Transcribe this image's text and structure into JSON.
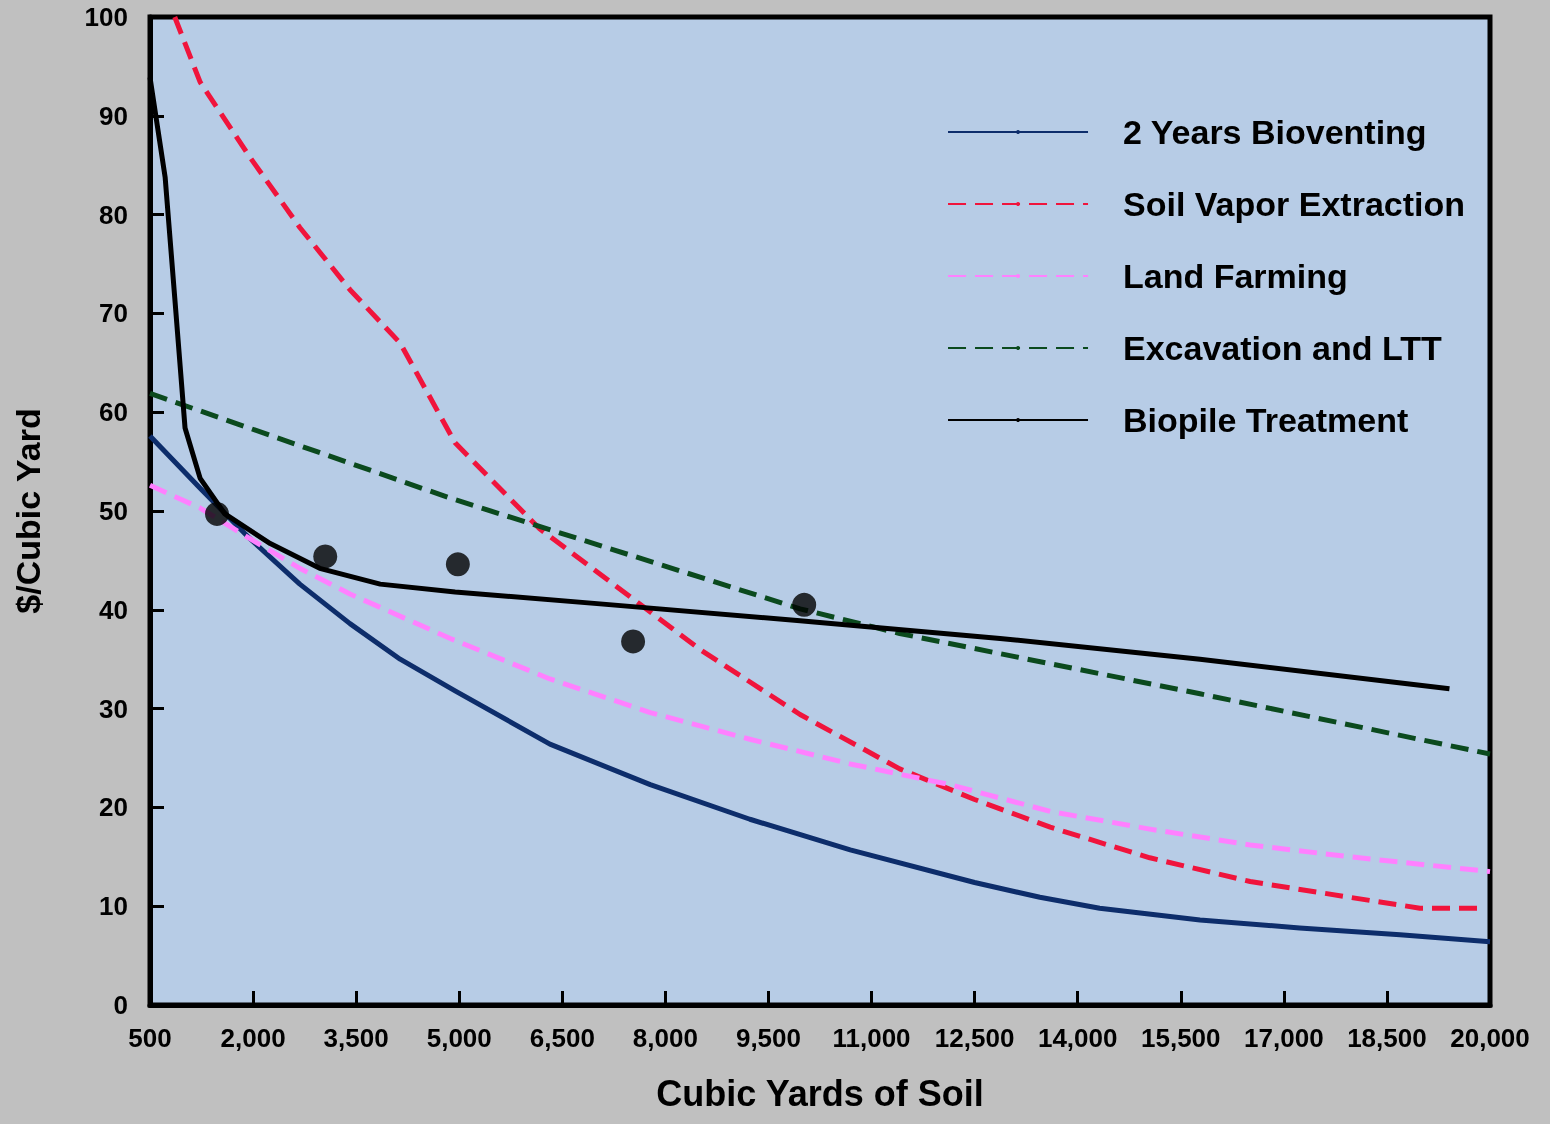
{
  "chart_data": {
    "type": "line",
    "xlabel": "Cubic Yards of Soil",
    "ylabel": "$/Cubic Yard",
    "legend": "top right",
    "grid": false,
    "marker": "none",
    "xlim": [
      500,
      20000
    ],
    "xticks": [
      500,
      {
        "value": 2000,
        "label": "2,000"
      },
      {
        "value": 3500,
        "label": "3,500"
      },
      {
        "value": 5000,
        "label": "5,000"
      },
      {
        "value": 6500,
        "label": "6,500"
      },
      {
        "value": 8000,
        "label": "8,000"
      },
      {
        "value": 9500,
        "label": "9,500"
      },
      {
        "value": 11000,
        "label": "11,000"
      },
      {
        "value": 12500,
        "label": "12,500"
      },
      {
        "value": 14000,
        "label": "14,000"
      },
      {
        "value": 15500,
        "label": "15,500"
      },
      {
        "value": 17000,
        "label": "17,000"
      },
      {
        "value": 18500,
        "label": "18,500"
      },
      {
        "value": 20000,
        "label": "20,000"
      }
    ],
    "ylim": [
      0,
      100
    ],
    "yticks": [
      0,
      10,
      20,
      30,
      40,
      50,
      60,
      70,
      80,
      90,
      100
    ],
    "series": [
      {
        "name": "2 Years Bioventing",
        "color": "#0d2d6b",
        "line_style": "solid",
        "x": [
          500,
          1230,
          1955,
          2680,
          3410,
          4140,
          4940,
          6320,
          7780,
          9230,
          10690,
          12500,
          13450,
          14320,
          15780,
          17230,
          18690,
          20000
        ],
        "values": [
          57.6,
          52.3,
          47.2,
          42.6,
          38.6,
          35.0,
          31.8,
          26.4,
          22.3,
          18.8,
          15.7,
          12.4,
          10.9,
          9.8,
          8.6,
          7.8,
          7.1,
          6.4
        ]
      },
      {
        "name": "Soil Vapor Extraction",
        "color": "#f0143c",
        "line_style": "dashed",
        "x": [
          860,
          1230,
          1955,
          2680,
          3410,
          4140,
          4940,
          6170,
          7530,
          8500,
          9960,
          11410,
          12500,
          13600,
          15050,
          16510,
          17960,
          18980,
          19850
        ],
        "values": [
          100,
          93.4,
          85.8,
          78.7,
          72.4,
          67.0,
          56.9,
          48.2,
          41.1,
          36.0,
          29.4,
          23.9,
          20.8,
          18.0,
          14.9,
          12.5,
          10.9,
          9.8,
          9.8
        ]
      },
      {
        "name": "Land Farming",
        "color": "#ff80ff",
        "line_style": "dashed",
        "x": [
          500,
          1230,
          1955,
          2680,
          3410,
          4870,
          6320,
          7780,
          9230,
          10690,
          12140,
          13600,
          15050,
          16510,
          17960,
          20000
        ],
        "values": [
          52.6,
          50.3,
          47.2,
          44.2,
          41.6,
          37.1,
          33.0,
          29.6,
          26.9,
          24.4,
          22.3,
          19.6,
          17.8,
          16.2,
          15.0,
          13.5
        ]
      },
      {
        "name": "Excavation and LTT",
        "color": "#0b4a1e",
        "line_style": "dashed",
        "x": [
          500,
          4870,
          9960,
          11410,
          15780,
          20000
        ],
        "values": [
          61.9,
          51.3,
          40.1,
          37.6,
          31.5,
          25.4
        ]
      },
      {
        "name": "Biopile Treatment",
        "color": "#000000",
        "line_style": "solid",
        "x": [
          500,
          720,
          860,
          1010,
          1230,
          1590,
          2250,
          2970,
          3850,
          4940,
          7050,
          9960,
          12870,
          15780,
          19410
        ],
        "values": [
          93.9,
          83.8,
          71.6,
          58.4,
          53.3,
          49.7,
          46.7,
          44.2,
          42.6,
          41.8,
          40.6,
          38.9,
          37.1,
          35.0,
          32.0
        ]
      },
      {
        "type": "scatter",
        "marker": "circle",
        "color": "#000000",
        "x": [
          1475,
          3050,
          4980,
          7530,
          10020
        ],
        "values": [
          49.7,
          45.4,
          44.6,
          36.8,
          40.5
        ]
      }
    ]
  }
}
